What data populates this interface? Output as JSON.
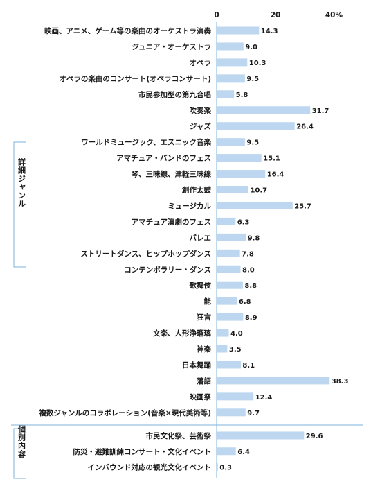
{
  "chart_data": {
    "type": "bar",
    "orientation": "horizontal",
    "xlim": [
      0,
      40
    ],
    "ticks": [
      "0",
      "20",
      "40%"
    ],
    "bar_color": "#bcd7ef",
    "axis_color": "#7eb3dc",
    "groups": [
      {
        "label": "詳細ジャンル",
        "start": 0,
        "end": 24
      },
      {
        "label": "個別内容",
        "start": 25,
        "end": 27
      }
    ],
    "categories": [
      "映画、アニメ、ゲーム等の楽曲のオーケストラ演奏",
      "ジュニア・オーケストラ",
      "オペラ",
      "オペラの楽曲のコンサート(オペラコンサート)",
      "市民参加型の第九合唱",
      "吹奏楽",
      "ジャズ",
      "ワールドミュージック、エスニック音楽",
      "アマチュア・バンドのフェス",
      "琴、三味線、津軽三味線",
      "創作太鼓",
      "ミュージカル",
      "アマチュア演劇のフェス",
      "バレエ",
      "ストリートダンス、ヒップホップダンス",
      "コンテンポラリー・ダンス",
      "歌舞伎",
      "能",
      "狂言",
      "文楽、人形浄瑠璃",
      "神楽",
      "日本舞踊",
      "落語",
      "映画祭",
      "複数ジャンルのコラボレーション(音楽×現代美術等)",
      "市民文化祭、芸術祭",
      "防災・避難訓練コンサート・文化イベント",
      "インバウンド対応の観光文化イベント"
    ],
    "values": [
      14.3,
      9.0,
      10.3,
      9.5,
      5.8,
      31.7,
      26.4,
      9.5,
      15.1,
      16.4,
      10.7,
      25.7,
      6.3,
      9.8,
      7.8,
      8.0,
      8.8,
      6.8,
      8.9,
      4.0,
      3.5,
      8.1,
      38.3,
      12.4,
      9.7,
      29.6,
      6.4,
      0.3
    ],
    "value_labels": [
      "14.3",
      "9.0",
      "10.3",
      "9.5",
      "5.8",
      "31.7",
      "26.4",
      "9.5",
      "15.1",
      "16.4",
      "10.7",
      "25.7",
      "6.3",
      "9.8",
      "7.8",
      "8.0",
      "8.8",
      "6.8",
      "8.9",
      "4.0",
      "3.5",
      "8.1",
      "38.3",
      "12.4",
      "9.7",
      "29.6",
      "6.4",
      "0.3"
    ]
  }
}
